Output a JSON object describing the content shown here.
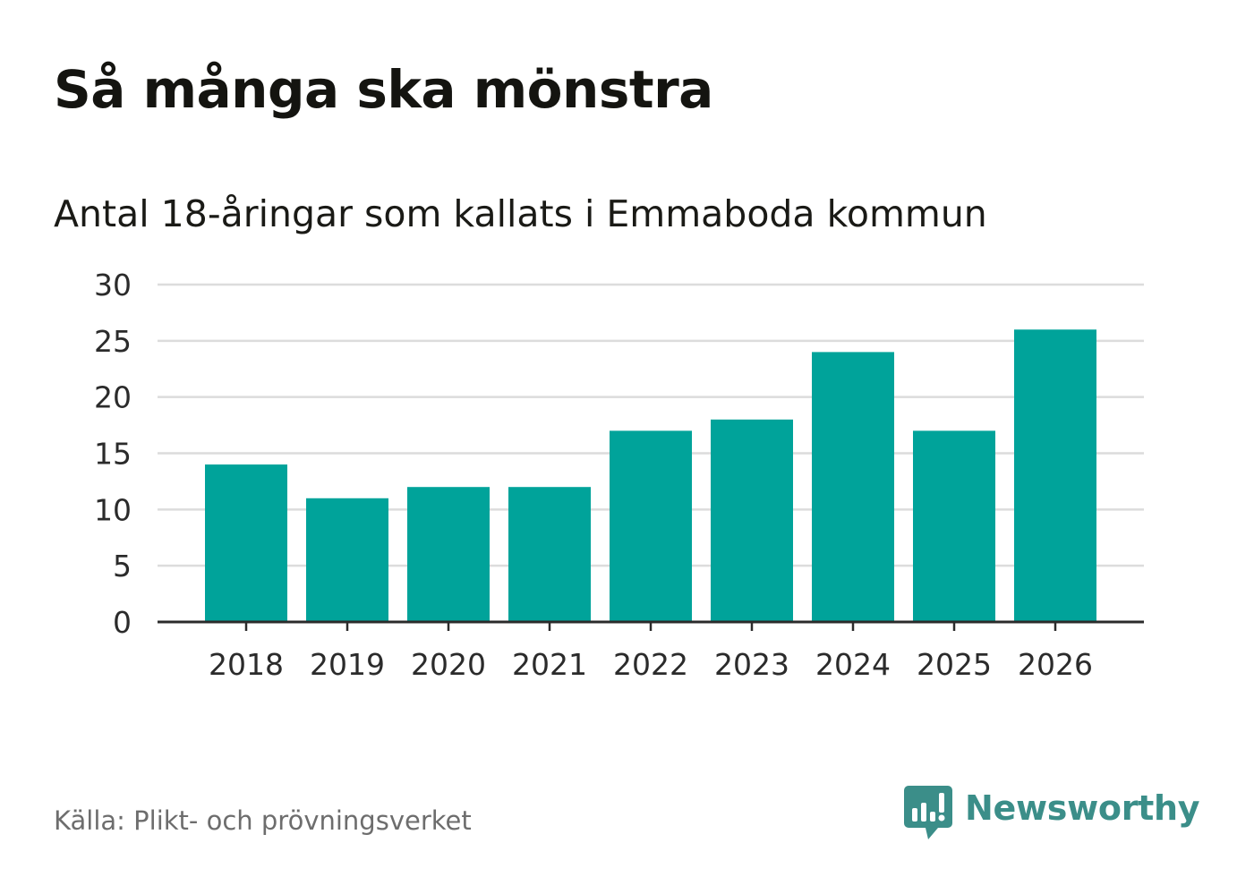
{
  "title": "Så många ska mönstra",
  "subtitle": "Antal 18-åringar som kallats i Emmaboda kommun",
  "source": "Källa: Plikt- och prövningsverket",
  "brand": {
    "name": "Newsworthy",
    "icon": "newsworthy-logo-icon",
    "color": "#3b8e89"
  },
  "colors": {
    "bar": "#00a39a",
    "grid": "#dcdcdc",
    "axis": "#2b2b2b"
  },
  "chart_data": {
    "type": "bar",
    "title": "Så många ska mönstra",
    "subtitle": "Antal 18-åringar som kallats i Emmaboda kommun",
    "categories": [
      "2018",
      "2019",
      "2020",
      "2021",
      "2022",
      "2023",
      "2024",
      "2025",
      "2026"
    ],
    "values": [
      14,
      11,
      12,
      12,
      17,
      18,
      24,
      17,
      26
    ],
    "yticks": [
      0,
      5,
      10,
      15,
      20,
      25,
      30
    ],
    "ylim": [
      0,
      30
    ],
    "xlabel": "",
    "ylabel": "",
    "grid": true,
    "legend": "none"
  }
}
